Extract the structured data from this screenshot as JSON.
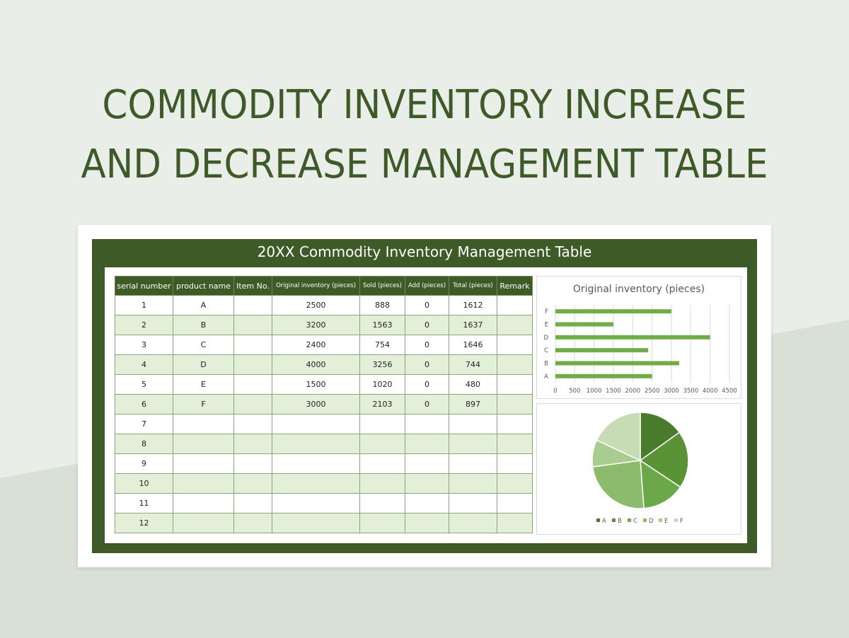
{
  "page": {
    "title_line1": "COMMODITY INVENTORY INCREASE",
    "title_line2": "AND DECREASE MANAGEMENT TABLE"
  },
  "sheet": {
    "title": "20XX Commodity Inventory Management Table",
    "headers": [
      "serial number",
      "product name",
      "Item No.",
      "Original inventory (pieces)",
      "Sold (pieces)",
      "Add (pieces)",
      "Total (pieces)",
      "Remark"
    ],
    "rows": [
      [
        "1",
        "A",
        "",
        "2500",
        "888",
        "0",
        "1612",
        ""
      ],
      [
        "2",
        "B",
        "",
        "3200",
        "1563",
        "0",
        "1637",
        ""
      ],
      [
        "3",
        "C",
        "",
        "2400",
        "754",
        "0",
        "1646",
        ""
      ],
      [
        "4",
        "D",
        "",
        "4000",
        "3256",
        "0",
        "744",
        ""
      ],
      [
        "5",
        "E",
        "",
        "1500",
        "1020",
        "0",
        "480",
        ""
      ],
      [
        "6",
        "F",
        "",
        "3000",
        "2103",
        "0",
        "897",
        ""
      ],
      [
        "7",
        "",
        "",
        "",
        "",
        "",
        "",
        ""
      ],
      [
        "8",
        "",
        "",
        "",
        "",
        "",
        "",
        ""
      ],
      [
        "9",
        "",
        "",
        "",
        "",
        "",
        "",
        ""
      ],
      [
        "10",
        "",
        "",
        "",
        "",
        "",
        "",
        ""
      ],
      [
        "11",
        "",
        "",
        "",
        "",
        "",
        "",
        ""
      ],
      [
        "12",
        "",
        "",
        "",
        "",
        "",
        "",
        ""
      ]
    ]
  },
  "colors": {
    "title_green": "#3d5a28",
    "frame_green": "#3e5a27",
    "row_tint": "#e2efd9",
    "bar_green": "#70ad47"
  },
  "chart_data": [
    {
      "type": "bar",
      "orientation": "horizontal",
      "title": "Original inventory (pieces)",
      "categories": [
        "A",
        "B",
        "C",
        "D",
        "E",
        "F"
      ],
      "values": [
        2500,
        3200,
        2400,
        4000,
        1500,
        3000
      ],
      "xlim": [
        0,
        4500
      ],
      "xticks": [
        "0",
        "500",
        "1000",
        "1500",
        "2000",
        "2500",
        "3000",
        "3500",
        "4000",
        "4500"
      ],
      "grid": true,
      "color": "#70ad47"
    },
    {
      "type": "pie",
      "categories": [
        "A",
        "B",
        "C",
        "D",
        "E",
        "F"
      ],
      "values": [
        2500,
        3200,
        2400,
        4000,
        1500,
        3000
      ],
      "colors": [
        "#4a7b2c",
        "#5a9236",
        "#6aa84a",
        "#8dbb6c",
        "#a9cc90",
        "#c5dcb4"
      ],
      "legend": "bottom"
    }
  ]
}
